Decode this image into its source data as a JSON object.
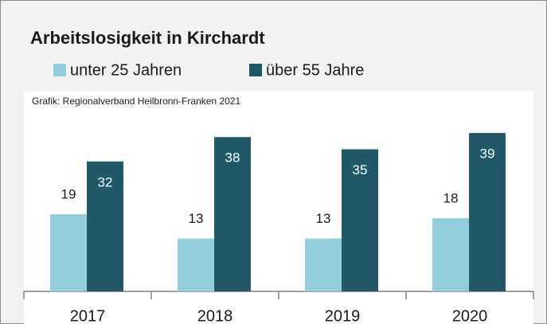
{
  "chart_data": {
    "type": "bar",
    "title": "Arbeitslosigkeit in Kirchardt",
    "source": "Grafik: Regionalverband Heilbronn-Franken 2021",
    "categories": [
      "2017",
      "2018",
      "2019",
      "2020"
    ],
    "series": [
      {
        "name": "unter 25 Jahren",
        "color": "#92cddc",
        "values": [
          19,
          13,
          13,
          18
        ]
      },
      {
        "name": "über 55 Jahre",
        "color": "#215968",
        "values": [
          32,
          38,
          35,
          39
        ]
      }
    ]
  }
}
